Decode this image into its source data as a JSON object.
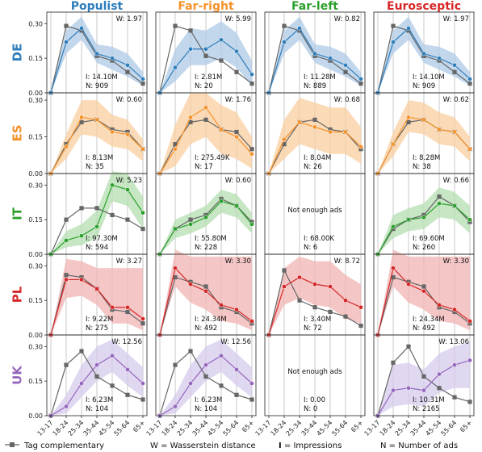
{
  "chart_data": {
    "type": "line",
    "x": [
      "13-17",
      "18-24",
      "25-34",
      "35-44",
      "45-54",
      "55-64",
      "65+"
    ],
    "columns": [
      {
        "name": "Populist",
        "color": "#2e7ebc"
      },
      {
        "name": "Far-right",
        "color": "#f5922b"
      },
      {
        "name": "Far-left",
        "color": "#2ca02c"
      },
      {
        "name": "Eurosceptic",
        "color": "#d62728"
      }
    ],
    "rows": [
      {
        "name": "DE",
        "color": "#2e7ebc",
        "color_light": "#adc9e6",
        "ylim": [
          0,
          0.35
        ],
        "yticks": [
          "0.00",
          "0.15",
          "0.30"
        ],
        "yvals": [
          0,
          0.15,
          0.3
        ]
      },
      {
        "name": "ES",
        "color": "#f5922b",
        "color_light": "#f9cf9f",
        "ylim": [
          0,
          0.33
        ],
        "yticks": [
          "0.00",
          "0.15",
          "0.30"
        ],
        "yvals": [
          0,
          0.15,
          0.3
        ]
      },
      {
        "name": "IT",
        "color": "#2ca02c",
        "color_light": "#b3deb0",
        "ylim": [
          0,
          0.35
        ],
        "yticks": [
          "0.00",
          "0.15",
          "0.30"
        ],
        "yvals": [
          0,
          0.15,
          0.3
        ]
      },
      {
        "name": "PL",
        "color": "#d62728",
        "color_light": "#f2b3b3",
        "ylim": [
          0,
          0.35
        ],
        "yticks": [
          "0.00",
          "0.15",
          "0.30"
        ],
        "yvals": [
          0,
          0.15,
          0.3
        ]
      },
      {
        "name": "UK",
        "color": "#9467bd",
        "color_light": "#d6c9ec",
        "ylim": [
          0,
          0.35
        ],
        "yticks": [
          "0.00",
          "0.15",
          "0.30"
        ],
        "yvals": [
          0,
          0.15,
          0.3
        ]
      }
    ],
    "panels": [
      [
        {
          "W": "W: 1.97",
          "I": "I: 14.10M",
          "N": "N: 909",
          "gray": [
            0,
            0.29,
            0.27,
            0.16,
            0.14,
            0.09,
            0.04
          ],
          "color": [
            0,
            0.22,
            0.28,
            0.17,
            0.15,
            0.12,
            0.06
          ],
          "band": [
            [
              0,
              0
            ],
            [
              0.17,
              0.27
            ],
            [
              0.23,
              0.33
            ],
            [
              0.13,
              0.21
            ],
            [
              0.1,
              0.2
            ],
            [
              0.07,
              0.17
            ],
            [
              0.03,
              0.09
            ]
          ]
        },
        {
          "W": "W: 5.99",
          "I": "I: 2.81M",
          "N": "N: 20",
          "gray": [
            0,
            0.29,
            0.27,
            0.16,
            0.14,
            0.09,
            0.04
          ],
          "color": [
            0,
            0.11,
            0.19,
            0.19,
            0.23,
            0.18,
            0.08
          ],
          "band": [
            [
              0,
              0
            ],
            [
              0.05,
              0.19
            ],
            [
              0.12,
              0.28
            ],
            [
              0.12,
              0.27
            ],
            [
              0.15,
              0.31
            ],
            [
              0.11,
              0.26
            ],
            [
              0.03,
              0.14
            ]
          ]
        },
        {
          "W": "W: 0.82",
          "I": "I: 11.28M",
          "N": "N: 889",
          "gray": [
            0,
            0.29,
            0.27,
            0.16,
            0.14,
            0.09,
            0.04
          ],
          "color": [
            0,
            0.22,
            0.28,
            0.17,
            0.15,
            0.12,
            0.06
          ],
          "band": [
            [
              0,
              0
            ],
            [
              0.17,
              0.27
            ],
            [
              0.23,
              0.33
            ],
            [
              0.13,
              0.21
            ],
            [
              0.1,
              0.2
            ],
            [
              0.07,
              0.17
            ],
            [
              0.03,
              0.09
            ]
          ]
        },
        {
          "W": "W: 1.97",
          "I": "I: 14.10M",
          "N": "N: 909",
          "gray": [
            0,
            0.29,
            0.27,
            0.16,
            0.14,
            0.09,
            0.04
          ],
          "color": [
            0,
            0.22,
            0.28,
            0.17,
            0.15,
            0.12,
            0.06
          ],
          "band": [
            [
              0,
              0
            ],
            [
              0.17,
              0.27
            ],
            [
              0.23,
              0.33
            ],
            [
              0.13,
              0.21
            ],
            [
              0.1,
              0.2
            ],
            [
              0.07,
              0.17
            ],
            [
              0.03,
              0.09
            ]
          ]
        }
      ],
      [
        {
          "W": "W: 0.60",
          "I": "I: 8.13M",
          "N": "N: 35",
          "gray": [
            0,
            0.12,
            0.21,
            0.22,
            0.18,
            0.17,
            0.1
          ],
          "color": [
            0,
            0.11,
            0.23,
            0.22,
            0.17,
            0.16,
            0.1
          ],
          "band": [
            [
              0,
              0
            ],
            [
              0.06,
              0.16
            ],
            [
              0.16,
              0.3
            ],
            [
              0.15,
              0.3
            ],
            [
              0.11,
              0.24
            ],
            [
              0.1,
              0.22
            ],
            [
              0.05,
              0.14
            ]
          ]
        },
        {
          "W": "W: 1.76",
          "I": "I: 275.49K",
          "N": "N: 17",
          "gray": [
            0,
            0.12,
            0.21,
            0.22,
            0.18,
            0.17,
            0.1
          ],
          "color": [
            0,
            0.1,
            0.23,
            0.27,
            0.18,
            0.15,
            0.08
          ],
          "band": [
            [
              0,
              0
            ],
            [
              0.03,
              0.2
            ],
            [
              0.12,
              0.33
            ],
            [
              0.15,
              0.33
            ],
            [
              0.08,
              0.28
            ],
            [
              0.06,
              0.25
            ],
            [
              0.02,
              0.15
            ]
          ]
        },
        {
          "W": "W: 0.68",
          "I": "I: 8.04M",
          "N": "N: 26",
          "gray": [
            0,
            0.12,
            0.21,
            0.22,
            0.18,
            0.17,
            0.1
          ],
          "color": [
            0,
            0.14,
            0.21,
            0.19,
            0.17,
            0.17,
            0.11
          ],
          "band": [
            [
              0,
              0
            ],
            [
              0.06,
              0.22
            ],
            [
              0.12,
              0.31
            ],
            [
              0.1,
              0.29
            ],
            [
              0.08,
              0.27
            ],
            [
              0.08,
              0.27
            ],
            [
              0.04,
              0.19
            ]
          ]
        },
        {
          "W": "W: 0.62",
          "I": "I: 8.28M",
          "N": "N: 38",
          "gray": [
            0,
            0.12,
            0.21,
            0.22,
            0.18,
            0.17,
            0.1
          ],
          "color": [
            0,
            0.12,
            0.23,
            0.22,
            0.18,
            0.17,
            0.1
          ],
          "band": [
            [
              0,
              0
            ],
            [
              0.07,
              0.17
            ],
            [
              0.17,
              0.3
            ],
            [
              0.16,
              0.29
            ],
            [
              0.12,
              0.25
            ],
            [
              0.11,
              0.23
            ],
            [
              0.05,
              0.15
            ]
          ]
        }
      ],
      [
        {
          "W": "W: 5.23",
          "I": "I: 97.30M",
          "N": "N: 594",
          "gray": [
            0,
            0.15,
            0.2,
            0.2,
            0.17,
            0.15,
            0.11
          ],
          "color": [
            0,
            0.06,
            0.08,
            0.12,
            0.3,
            0.28,
            0.18
          ],
          "band": [
            [
              0,
              0
            ],
            [
              0.03,
              0.1
            ],
            [
              0.04,
              0.13
            ],
            [
              0.07,
              0.19
            ],
            [
              0.23,
              0.36
            ],
            [
              0.21,
              0.35
            ],
            [
              0.11,
              0.25
            ]
          ]
        },
        {
          "W": "W: 0.60",
          "I": "I: 55.80M",
          "N": "N: 228",
          "gray": [
            0,
            0.11,
            0.15,
            0.17,
            0.24,
            0.21,
            0.14
          ],
          "color": [
            0,
            0.11,
            0.13,
            0.16,
            0.23,
            0.21,
            0.13
          ],
          "band": [
            [
              0,
              0
            ],
            [
              0.07,
              0.15
            ],
            [
              0.09,
              0.18
            ],
            [
              0.12,
              0.21
            ],
            [
              0.18,
              0.28
            ],
            [
              0.16,
              0.26
            ],
            [
              0.09,
              0.18
            ]
          ]
        },
        {
          "empty": true,
          "message": "Not enough ads",
          "I": "I: 68.00K",
          "N": "N: 6"
        },
        {
          "W": "W: 0.66",
          "I": "I: 69.60M",
          "N": "N: 260",
          "gray": [
            0,
            0.11,
            0.15,
            0.17,
            0.25,
            0.21,
            0.14
          ],
          "color": [
            0,
            0.12,
            0.15,
            0.16,
            0.22,
            0.21,
            0.15
          ],
          "band": [
            [
              0,
              0
            ],
            [
              0.07,
              0.17
            ],
            [
              0.1,
              0.2
            ],
            [
              0.11,
              0.22
            ],
            [
              0.16,
              0.29
            ],
            [
              0.15,
              0.27
            ],
            [
              0.09,
              0.21
            ]
          ]
        }
      ],
      [
        {
          "W": "W: 3.27",
          "I": "I: 9.22M",
          "N": "N: 275",
          "gray": [
            0,
            0.26,
            0.25,
            0.2,
            0.11,
            0.1,
            0.05
          ],
          "color": [
            0,
            0.24,
            0.24,
            0.2,
            0.12,
            0.12,
            0.07
          ],
          "band": [
            [
              0,
              0
            ],
            [
              0.16,
              0.33
            ],
            [
              0.17,
              0.32
            ],
            [
              0.13,
              0.29
            ],
            [
              0.05,
              0.29
            ],
            [
              0.05,
              0.29
            ],
            [
              0.02,
              0.29
            ]
          ]
        },
        {
          "W": "W: 3.30",
          "I": "I: 24.34M",
          "N": "N: 492",
          "gray": [
            0,
            0.25,
            0.23,
            0.21,
            0.12,
            0.1,
            0.05
          ],
          "color": [
            0,
            0.29,
            0.22,
            0.19,
            0.13,
            0.11,
            0.06
          ],
          "band": [
            [
              0,
              0
            ],
            [
              0.21,
              0.37
            ],
            [
              0.14,
              0.34
            ],
            [
              0.11,
              0.34
            ],
            [
              0.06,
              0.34
            ],
            [
              0.05,
              0.34
            ],
            [
              0.02,
              0.34
            ]
          ]
        },
        {
          "W": "W: 8.72",
          "I": "I: 3.40M",
          "N": "N: 72",
          "gray": [
            0,
            0.28,
            0.15,
            0.12,
            0.1,
            0.08,
            0.04
          ],
          "color": [
            0,
            0.21,
            0.25,
            0.22,
            0.21,
            0.15,
            0.12
          ],
          "band": [
            [
              0,
              0
            ],
            [
              0.13,
              0.29
            ],
            [
              0.16,
              0.34
            ],
            [
              0.13,
              0.32
            ],
            [
              0.12,
              0.32
            ],
            [
              0.07,
              0.26
            ],
            [
              0.05,
              0.22
            ]
          ]
        },
        {
          "W": "W: 3.30",
          "I": "I: 24.34M",
          "N": "N: 492",
          "gray": [
            0,
            0.25,
            0.23,
            0.21,
            0.12,
            0.1,
            0.05
          ],
          "color": [
            0,
            0.29,
            0.22,
            0.19,
            0.13,
            0.11,
            0.06
          ],
          "band": [
            [
              0,
              0
            ],
            [
              0.21,
              0.37
            ],
            [
              0.14,
              0.34
            ],
            [
              0.11,
              0.34
            ],
            [
              0.06,
              0.34
            ],
            [
              0.05,
              0.34
            ],
            [
              0.02,
              0.34
            ]
          ]
        }
      ],
      [
        {
          "W": "W: 12.56",
          "I": "I: 6.23M",
          "N": "N: 104",
          "gray": [
            0,
            0.22,
            0.28,
            0.17,
            0.13,
            0.09,
            0.07
          ],
          "color": [
            0,
            0.04,
            0.14,
            0.22,
            0.26,
            0.2,
            0.14
          ],
          "band": [
            [
              0,
              0
            ],
            [
              0.01,
              0.09
            ],
            [
              0.08,
              0.22
            ],
            [
              0.15,
              0.3
            ],
            [
              0.19,
              0.33
            ],
            [
              0.13,
              0.27
            ],
            [
              0.08,
              0.21
            ]
          ]
        },
        {
          "W": "W: 12.56",
          "I": "I: 6.23M",
          "N": "N: 104",
          "gray": [
            0,
            0.22,
            0.28,
            0.17,
            0.13,
            0.09,
            0.07
          ],
          "color": [
            0,
            0.04,
            0.14,
            0.22,
            0.26,
            0.2,
            0.14
          ],
          "band": [
            [
              0,
              0
            ],
            [
              0.01,
              0.09
            ],
            [
              0.08,
              0.22
            ],
            [
              0.15,
              0.3
            ],
            [
              0.19,
              0.33
            ],
            [
              0.13,
              0.27
            ],
            [
              0.08,
              0.21
            ]
          ]
        },
        {
          "empty": true,
          "message": "Not enough ads",
          "I": "I: 0.00",
          "N": "N: 0"
        },
        {
          "W": "W: 13.06",
          "I": "I: 10.31M",
          "N": "N: 2165",
          "gray": [
            0,
            0.23,
            0.3,
            0.17,
            0.12,
            0.08,
            0.06
          ],
          "color": [
            0,
            0.11,
            0.12,
            0.11,
            0.18,
            0.22,
            0.24
          ],
          "band": [
            [
              0,
              0
            ],
            [
              0.04,
              0.22
            ],
            [
              0.05,
              0.23
            ],
            [
              0.04,
              0.2
            ],
            [
              0.1,
              0.27
            ],
            [
              0.12,
              0.3
            ],
            [
              0.12,
              0.32
            ]
          ]
        }
      ]
    ],
    "legend": {
      "series": "Tag complementary",
      "w_note": "W = Wasserstein distance",
      "i_pre": "I",
      "i_word": " = Impressions",
      "n_note": "N = Number of ads"
    }
  }
}
